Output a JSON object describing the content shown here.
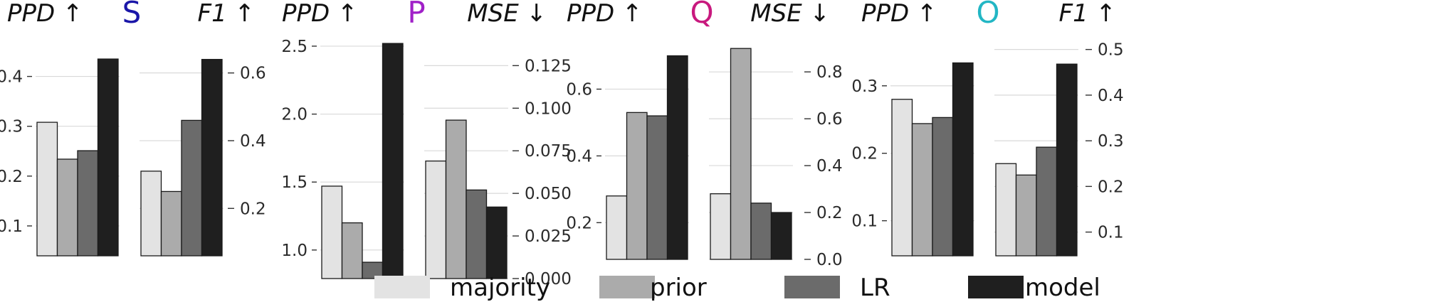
{
  "chart_data": [
    {
      "type": "bar",
      "title": "S",
      "title_color": "#1a16a8",
      "left": {
        "label": "PPD ↑",
        "values": [
          0.308,
          0.234,
          0.251,
          0.435
        ],
        "ylim": [
          0.04,
          0.475
        ],
        "ticks": [
          0.1,
          0.2,
          0.3,
          0.4
        ],
        "tick_labels": [
          "0.1",
          "0.2",
          "0.3",
          "0.4"
        ]
      },
      "right": {
        "label": "F1 ↑",
        "values": [
          0.31,
          0.25,
          0.46,
          0.64
        ],
        "ylim": [
          0.06,
          0.7
        ],
        "ticks": [
          0.2,
          0.4,
          0.6
        ],
        "tick_labels": [
          "0.2",
          "0.4",
          "0.6"
        ]
      },
      "grid": true
    },
    {
      "type": "bar",
      "title": "P",
      "title_color": "#a020c8",
      "left": {
        "label": "PPD ↑",
        "values": [
          1.47,
          1.2,
          0.91,
          2.52
        ],
        "ylim": [
          0.79,
          2.62
        ],
        "ticks": [
          1.0,
          1.5,
          2.0,
          2.5
        ],
        "tick_labels": [
          "1.0",
          "1.5",
          "2.0",
          "2.5"
        ]
      },
      "right": {
        "label": "MSE ↓",
        "values": [
          0.069,
          0.093,
          0.052,
          0.042
        ],
        "ylim": [
          0.0,
          0.146
        ],
        "ticks": [
          0.0,
          0.025,
          0.05,
          0.075,
          0.1,
          0.125
        ],
        "tick_labels": [
          "0.000",
          "0.025",
          "0.050",
          "0.075",
          "0.100",
          "0.125"
        ]
      },
      "grid": true
    },
    {
      "type": "bar",
      "title": "Q",
      "title_color": "#c8197e",
      "left": {
        "label": "PPD ↑",
        "values": [
          0.28,
          0.53,
          0.52,
          0.7
        ],
        "ylim": [
          0.09,
          0.75
        ],
        "ticks": [
          0.2,
          0.4,
          0.6
        ],
        "tick_labels": [
          "0.2",
          "0.4",
          "0.6"
        ]
      },
      "right": {
        "label": "MSE ↓",
        "values": [
          0.28,
          0.9,
          0.24,
          0.2
        ],
        "ylim": [
          0.0,
          0.94
        ],
        "ticks": [
          0.0,
          0.2,
          0.4,
          0.6,
          0.8
        ],
        "tick_labels": [
          "0.0",
          "0.2",
          "0.4",
          "0.6",
          "0.8"
        ]
      },
      "grid": true
    },
    {
      "type": "bar",
      "title": "O",
      "title_color": "#22b6c4",
      "left": {
        "label": "PPD ↑",
        "values": [
          0.28,
          0.244,
          0.253,
          0.334
        ],
        "ylim": [
          0.048,
          0.364
        ],
        "ticks": [
          0.1,
          0.2,
          0.3
        ],
        "tick_labels": [
          "0.1",
          "0.2",
          "0.3"
        ]
      },
      "right": {
        "label": "F1 ↑",
        "values": [
          0.25,
          0.225,
          0.286,
          0.468
        ],
        "ylim": [
          0.048,
          0.515
        ],
        "ticks": [
          0.1,
          0.2,
          0.3,
          0.4,
          0.5
        ],
        "tick_labels": [
          "0.1",
          "0.2",
          "0.3",
          "0.4",
          "0.5"
        ]
      },
      "grid": true
    }
  ],
  "legend": {
    "placement": "bottom-center",
    "items": [
      {
        "label": "majority",
        "color": "#e3e3e3"
      },
      {
        "label": "prior",
        "color": "#ababab"
      },
      {
        "label": "LR",
        "color": "#6b6b6b"
      },
      {
        "label": "model",
        "color": "#1f1f1f"
      }
    ]
  }
}
